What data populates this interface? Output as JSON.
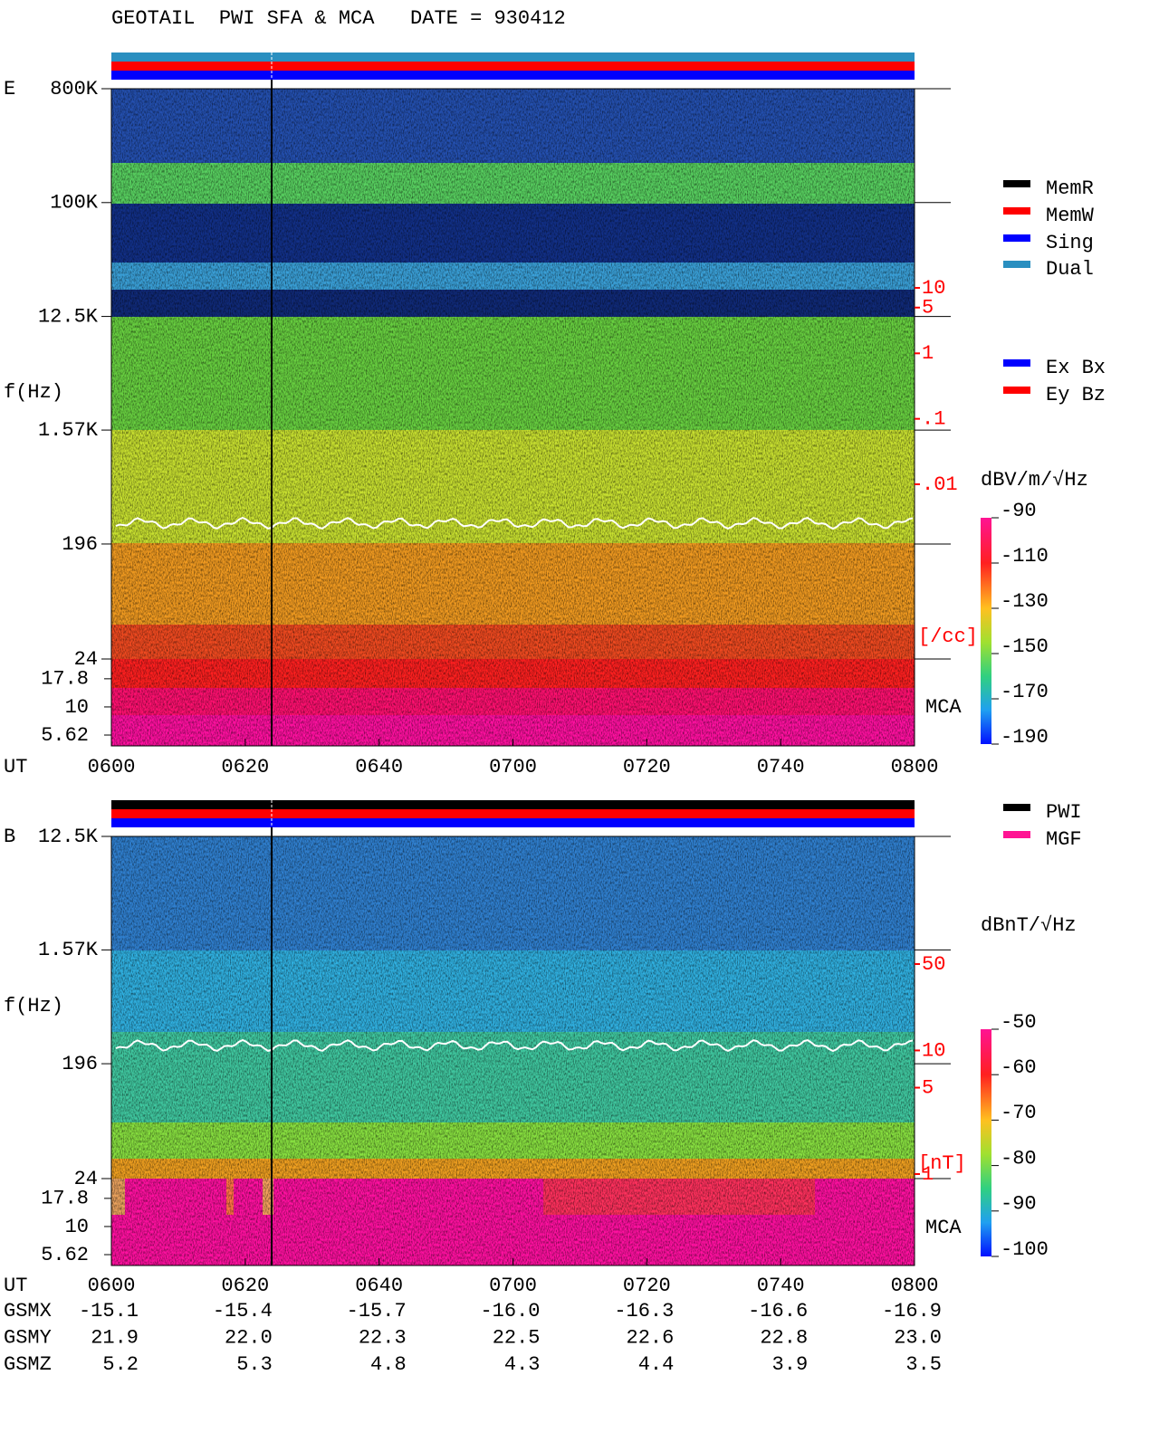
{
  "title": "GEOTAIL  PWI SFA & MCA   DATE = 930412",
  "panels": [
    {
      "label": "E",
      "y_axis_label": "f(Hz)",
      "freq_axis": {
        "log": true,
        "ylim": [
          24,
          800000
        ],
        "ticks": [
          {
            "value": 800000,
            "label": "800K"
          },
          {
            "value": 100000,
            "label": "100K"
          },
          {
            "value": 12500,
            "label": "12.5K"
          },
          {
            "value": 1570,
            "label": "1.57K"
          },
          196,
          24
        ]
      },
      "mca_axis": {
        "log": true,
        "ylim": [
          4.5,
          26.7
        ],
        "ticks": [
          17.8,
          10,
          5.62
        ],
        "label": "MCA"
      },
      "density_axis": {
        "log": true,
        "ylim": [
          0.01,
          10
        ],
        "ticks": [
          10,
          5,
          1,
          {
            "value": 0.1,
            "label": ".1"
          },
          {
            "value": 0.01,
            "label": ".01"
          }
        ],
        "label": "[/cc]"
      },
      "colorbar": {
        "label": "dBV/m/√Hz",
        "lim": [
          -190,
          -90
        ],
        "ticks": [
          -90,
          -110,
          -130,
          -150,
          -170,
          -190
        ]
      },
      "legends": [
        [
          {
            "name": "MemR",
            "color": "#000000"
          },
          {
            "name": "MemW",
            "color": "#ff0000"
          },
          {
            "name": "Sing",
            "color": "#0000ff"
          },
          {
            "name": "Dual",
            "color": "#2a8fc0"
          }
        ],
        [
          {
            "name": "Ex Bx",
            "color": "#0000ff"
          },
          {
            "name": "Ey Bz",
            "color": "#ff0000"
          }
        ]
      ]
    },
    {
      "label": "B",
      "y_axis_label": "f(Hz)",
      "freq_axis": {
        "log": true,
        "ylim": [
          24,
          12500
        ],
        "ticks": [
          {
            "value": 12500,
            "label": "12.5K"
          },
          {
            "value": 1570,
            "label": "1.57K"
          },
          196,
          24
        ]
      },
      "mca_axis": {
        "log": true,
        "ylim": [
          4.5,
          26.7
        ],
        "ticks": [
          17.8,
          10,
          5.62
        ],
        "label": "MCA"
      },
      "density_axis": {
        "log": true,
        "ylim": [
          1,
          50
        ],
        "ticks": [
          50,
          10,
          5,
          1
        ],
        "label": "[nT]"
      },
      "colorbar": {
        "label": "dBnT/√Hz",
        "lim": [
          -100,
          -50
        ],
        "ticks": [
          -50,
          -60,
          -70,
          -80,
          -90,
          -100
        ]
      },
      "legends": [
        [
          {
            "name": "PWI",
            "color": "#000000"
          },
          {
            "name": "MGF",
            "color": "#ff1493"
          }
        ]
      ]
    }
  ],
  "time_axis": {
    "label": "UT",
    "ticks": [
      "0600",
      "0620",
      "0640",
      "0700",
      "0720",
      "0740",
      "0800"
    ]
  },
  "orbit": [
    {
      "label": "GSMX",
      "values": [
        "-15.1",
        "-15.4",
        "-15.7",
        "-16.0",
        "-16.3",
        "-16.6",
        "-16.9"
      ]
    },
    {
      "label": "GSMY",
      "values": [
        "21.9",
        "22.0",
        "22.3",
        "22.5",
        "22.6",
        "22.8",
        "23.0"
      ]
    },
    {
      "label": "GSMZ",
      "values": [
        "5.2",
        "5.3",
        "4.8",
        "4.3",
        "4.4",
        "3.9",
        "3.5"
      ]
    }
  ]
}
